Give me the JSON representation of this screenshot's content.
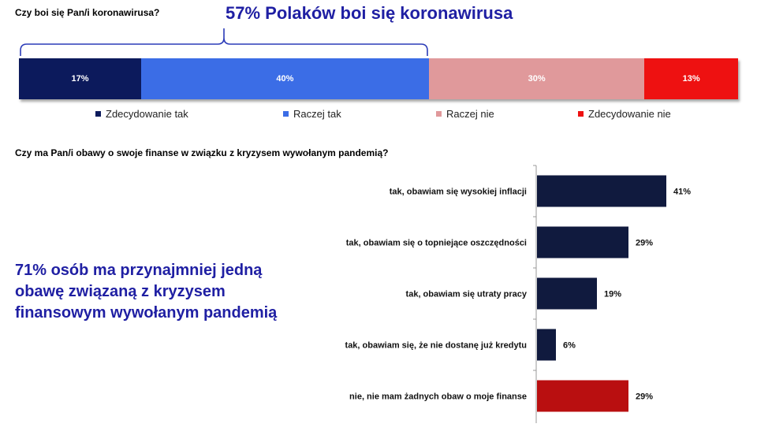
{
  "q1": "Czy boi się Pan/i koronawirusa?",
  "headline": "57% Polaków boi się koronawirusa",
  "q2": "Czy ma Pan/i obawy o swoje finanse w związku z kryzysem wywołanym pandemią?",
  "callout": "71% osób ma przynajmniej jedną obawę związaną z kryzysem finansowym wywołanym pandemią",
  "chart_data": [
    {
      "type": "bar",
      "orientation": "horizontal-stacked",
      "title": "Czy boi się Pan/i koronawirusa?",
      "annotation": "57% Polaków boi się koronawirusa",
      "series": [
        {
          "name": "Zdecydowanie tak",
          "value": 17,
          "label": "17%",
          "color": "#0c1a5c"
        },
        {
          "name": "Raczej tak",
          "value": 40,
          "label": "40%",
          "color": "#3b6de6"
        },
        {
          "name": "Raczej nie",
          "value": 30,
          "label": "30%",
          "color": "#e0999b"
        },
        {
          "name": "Zdecydowanie nie",
          "value": 13,
          "label": "13%",
          "color": "#ee1111"
        }
      ],
      "legend_position": "bottom"
    },
    {
      "type": "bar",
      "orientation": "horizontal",
      "title": "Czy ma Pan/i obawy o swoje finanse w związku z kryzysem wywołanym pandemią?",
      "categories": [
        "tak, obawiam się wysokiej inflacji",
        "tak, obawiam się o topniejące oszczędności",
        "tak, obawiam się utraty pracy",
        "tak, obawiam się, że nie dostanę już kredytu",
        "nie, nie mam żadnych obaw o moje finanse"
      ],
      "values": [
        41,
        29,
        19,
        6,
        29
      ],
      "labels": [
        "41%",
        "29%",
        "19%",
        "6%",
        "29%"
      ],
      "colors": [
        "#101a3e",
        "#101a3e",
        "#101a3e",
        "#101a3e",
        "#b90f10"
      ],
      "grid": false
    }
  ]
}
